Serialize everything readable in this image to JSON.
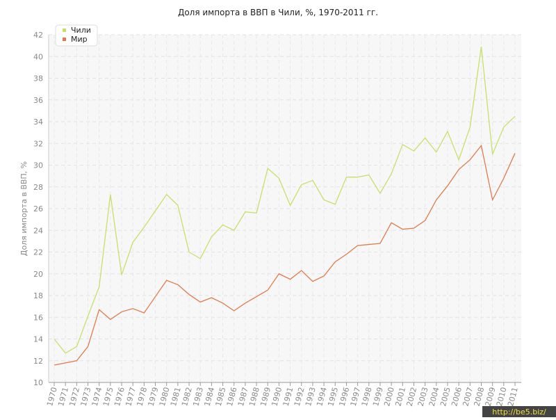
{
  "chart_data": {
    "type": "line",
    "title": "Доля импорта в ВВП в Чили, %, 1970-2011 гг.",
    "y_label": "Доля импорта в ВВП, %",
    "watermark": "http://be5.biz/",
    "categories": [
      "1970",
      "1971",
      "1972",
      "1973",
      "1974",
      "1975",
      "1976",
      "1977",
      "1978",
      "1979",
      "1980",
      "1981",
      "1982",
      "1983",
      "1984",
      "1985",
      "1986",
      "1987",
      "1988",
      "1989",
      "1990",
      "1991",
      "1992",
      "1993",
      "1994",
      "1995",
      "1996",
      "1997",
      "1998",
      "1999",
      "2000",
      "2001",
      "2002",
      "2003",
      "2004",
      "2005",
      "2006",
      "2007",
      "2008",
      "2009",
      "2010",
      "2011"
    ],
    "series": [
      {
        "name": "Чили",
        "color": "#c5e068",
        "values": [
          14.0,
          12.7,
          13.3,
          16.1,
          18.8,
          27.3,
          19.9,
          22.9,
          24.3,
          25.8,
          27.3,
          26.3,
          22.0,
          21.4,
          23.4,
          24.5,
          24.0,
          25.7,
          25.6,
          29.7,
          28.8,
          26.3,
          28.2,
          28.6,
          26.8,
          26.4,
          28.9,
          28.9,
          29.1,
          27.4,
          29.2,
          31.9,
          31.3,
          32.5,
          31.2,
          33.1,
          30.5,
          33.5,
          40.9,
          31.0,
          33.5,
          34.5
        ]
      },
      {
        "name": "Мир",
        "color": "#e07a4c",
        "values": [
          11.6,
          11.8,
          12.0,
          13.3,
          16.7,
          15.8,
          16.5,
          16.8,
          16.4,
          17.9,
          19.4,
          19.0,
          18.1,
          17.4,
          17.8,
          17.3,
          16.6,
          17.3,
          17.9,
          18.5,
          20.0,
          19.5,
          20.3,
          19.3,
          19.8,
          21.1,
          21.8,
          22.6,
          22.7,
          22.8,
          24.7,
          24.1,
          24.2,
          24.9,
          26.8,
          28.1,
          29.6,
          30.5,
          31.8,
          26.8,
          28.8,
          31.1
        ]
      }
    ],
    "ylim": [
      10,
      42
    ],
    "yticks": [
      10,
      12,
      14,
      16,
      18,
      20,
      22,
      24,
      26,
      28,
      30,
      32,
      34,
      36,
      38,
      40,
      42
    ],
    "grid": true,
    "legend": "top-left"
  }
}
